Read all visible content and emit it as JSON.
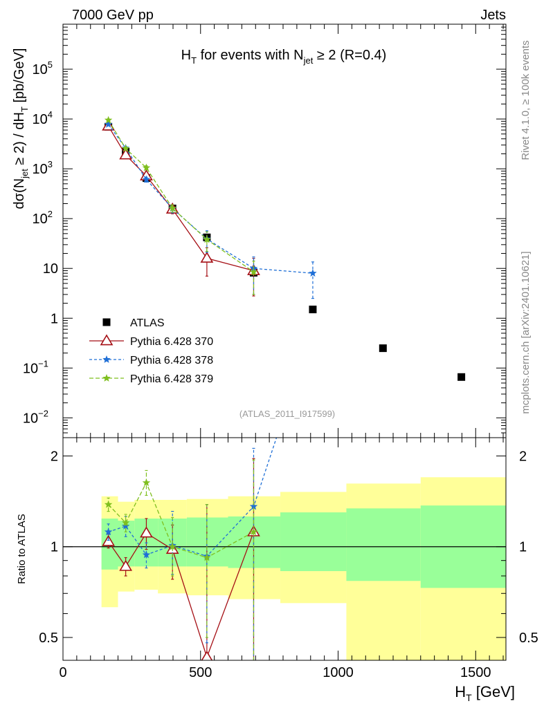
{
  "header": {
    "left": "7000 GeV pp",
    "right": "Jets",
    "side_top": "Rivet 4.1.0, ≥ 100k events",
    "side_bottom": "mcplots.cern.ch [arXiv:2401.10621]",
    "analysis_id": "(ATLAS_2011_I917599)"
  },
  "chart_data": [
    {
      "type": "line",
      "panel": "main",
      "title": "H_T for events with N_jet ≥ 2 (R=0.4)",
      "title_parts": {
        "h": "H",
        "h_sub": "T",
        "mid": " for events with N",
        "n_sub": "jet",
        "tail": " ≥ 2 (R=0.4)"
      },
      "xlabel": "H_T [GeV]",
      "ylabel": "dσ(N_jet ≥ 2) / dH_T [pb/GeV]",
      "ylabel_parts": {
        "a": "dσ(N",
        "a_sub": "jet",
        "b": " ≥ 2) / dH",
        "b_sub": "T",
        "c": " [pb/GeV]"
      },
      "xlim": [
        0,
        1610
      ],
      "ylim": [
        0.004,
        800000
      ],
      "yscale": "log",
      "xticks": [
        0,
        500,
        1000,
        1500
      ],
      "xtick_labels": [
        "0",
        "500",
        "1000",
        "1500"
      ],
      "yticks": [
        0.01,
        0.1,
        1,
        10,
        100,
        1000,
        10000,
        100000
      ],
      "ytick_labels": [
        {
          "base": "10",
          "exp": "−2"
        },
        {
          "base": "10",
          "exp": "−1"
        },
        {
          "base": "1",
          "exp": ""
        },
        {
          "base": "10",
          "exp": ""
        },
        {
          "base": "10",
          "exp": "2"
        },
        {
          "base": "10",
          "exp": "3"
        },
        {
          "base": "10",
          "exp": "4"
        },
        {
          "base": "10",
          "exp": "5"
        }
      ],
      "series": [
        {
          "name": "ATLAS",
          "color": "#000000",
          "marker": "square",
          "points": [
            {
              "x": 165,
              "y": 7000
            },
            {
              "x": 228,
              "y": 2200
            },
            {
              "x": 303,
              "y": 650
            },
            {
              "x": 398,
              "y": 160
            },
            {
              "x": 523,
              "y": 42
            },
            {
              "x": 693,
              "y": 8.2
            },
            {
              "x": 908,
              "y": 1.5
            },
            {
              "x": 1163,
              "y": 0.25
            },
            {
              "x": 1448,
              "y": 0.066
            }
          ]
        },
        {
          "name": "Pythia 6.428 370",
          "color": "#a50f15",
          "marker": "triangle-open",
          "dash": "",
          "points": [
            {
              "x": 165,
              "y": 7200,
              "lo": 6800,
              "hi": 7600
            },
            {
              "x": 228,
              "y": 1900,
              "lo": 1780,
              "hi": 2020
            },
            {
              "x": 303,
              "y": 720,
              "lo": 640,
              "hi": 800
            },
            {
              "x": 398,
              "y": 155,
              "lo": 125,
              "hi": 185
            },
            {
              "x": 523,
              "y": 16,
              "lo": 7,
              "hi": 26
            },
            {
              "x": 693,
              "y": 9,
              "lo": 2.8,
              "hi": 16
            }
          ]
        },
        {
          "name": "Pythia 6.428 378",
          "color": "#1f6fd6",
          "marker": "star",
          "dash": "4,3",
          "points": [
            {
              "x": 165,
              "y": 7800,
              "lo": 7300,
              "hi": 8300
            },
            {
              "x": 228,
              "y": 2600,
              "lo": 2400,
              "hi": 2800
            },
            {
              "x": 303,
              "y": 610,
              "lo": 540,
              "hi": 680
            },
            {
              "x": 398,
              "y": 160,
              "lo": 130,
              "hi": 190
            },
            {
              "x": 523,
              "y": 39,
              "lo": 21,
              "hi": 57
            },
            {
              "x": 693,
              "y": 10,
              "lo": 3,
              "hi": 17
            },
            {
              "x": 908,
              "y": 8,
              "lo": 2.5,
              "hi": 13.5
            }
          ]
        },
        {
          "name": "Pythia 6.428 379",
          "color": "#7fbf1f",
          "marker": "star",
          "dash": "6,3",
          "points": [
            {
              "x": 165,
              "y": 9500,
              "lo": 9000,
              "hi": 10000
            },
            {
              "x": 228,
              "y": 2550,
              "lo": 2400,
              "hi": 2700
            },
            {
              "x": 303,
              "y": 1050,
              "lo": 950,
              "hi": 1150
            },
            {
              "x": 398,
              "y": 162,
              "lo": 135,
              "hi": 190
            },
            {
              "x": 523,
              "y": 38,
              "lo": 22,
              "hi": 54
            },
            {
              "x": 693,
              "y": 8.5,
              "lo": 3,
              "hi": 14
            }
          ]
        }
      ],
      "legend": {
        "position": "left-middle"
      }
    },
    {
      "type": "line",
      "panel": "ratio",
      "ylabel": "Ratio to ATLAS",
      "xlim": [
        0,
        1610
      ],
      "ylim": [
        0.42,
        2.3
      ],
      "yscale": "log",
      "yticks": [
        0.5,
        1,
        2
      ],
      "ytick_labels": [
        "0.5",
        "1",
        "2"
      ],
      "reference_line": 1,
      "bands": [
        {
          "x0": 140,
          "x1": 200,
          "green": [
            0.84,
            1.24
          ],
          "yellow": [
            0.63,
            1.47
          ]
        },
        {
          "x0": 200,
          "x1": 260,
          "green": [
            0.86,
            1.22
          ],
          "yellow": [
            0.71,
            1.41
          ]
        },
        {
          "x0": 260,
          "x1": 345,
          "green": [
            0.86,
            1.24
          ],
          "yellow": [
            0.72,
            1.43
          ]
        },
        {
          "x0": 345,
          "x1": 450,
          "green": [
            0.86,
            1.24
          ],
          "yellow": [
            0.7,
            1.43
          ]
        },
        {
          "x0": 450,
          "x1": 600,
          "green": [
            0.86,
            1.25
          ],
          "yellow": [
            0.69,
            1.44
          ]
        },
        {
          "x0": 600,
          "x1": 790,
          "green": [
            0.85,
            1.26
          ],
          "yellow": [
            0.67,
            1.47
          ]
        },
        {
          "x0": 790,
          "x1": 1030,
          "green": [
            0.83,
            1.3
          ],
          "yellow": [
            0.65,
            1.52
          ]
        },
        {
          "x0": 1030,
          "x1": 1300,
          "green": [
            0.77,
            1.34
          ],
          "yellow": [
            0.38,
            1.62
          ]
        },
        {
          "x0": 1300,
          "x1": 1610,
          "green": [
            0.73,
            1.37
          ],
          "yellow": [
            0.3,
            1.7
          ]
        }
      ],
      "series": [
        {
          "name": "Pythia 6.428 370",
          "color": "#a50f15",
          "marker": "triangle-open",
          "dash": "",
          "points": [
            {
              "x": 165,
              "y": 1.04,
              "lo": 0.99,
              "hi": 1.1
            },
            {
              "x": 228,
              "y": 0.86,
              "lo": 0.8,
              "hi": 0.92
            },
            {
              "x": 303,
              "y": 1.11,
              "lo": 0.98,
              "hi": 1.24
            },
            {
              "x": 398,
              "y": 0.98,
              "lo": 0.78,
              "hi": 1.18
            },
            {
              "x": 523,
              "y": 0.43,
              "lo": 0.3,
              "hi": 1.38
            },
            {
              "x": 693,
              "y": 1.12,
              "lo": 0.3,
              "hi": 1.96
            }
          ]
        },
        {
          "name": "Pythia 6.428 378",
          "color": "#1f6fd6",
          "marker": "star",
          "dash": "4,3",
          "points": [
            {
              "x": 165,
              "y": 1.12,
              "lo": 1.05,
              "hi": 1.19
            },
            {
              "x": 228,
              "y": 1.17,
              "lo": 1.08,
              "hi": 1.26
            },
            {
              "x": 303,
              "y": 0.94,
              "lo": 0.85,
              "hi": 1.03
            },
            {
              "x": 398,
              "y": 1.01,
              "lo": 0.81,
              "hi": 1.31
            },
            {
              "x": 523,
              "y": 0.93,
              "lo": 0.48,
              "hi": 1.38
            },
            {
              "x": 693,
              "y": 1.36,
              "lo": 0.3,
              "hi": 2.12
            },
            {
              "x": 908,
              "y": 5.3
            }
          ]
        },
        {
          "name": "Pythia 6.428 379",
          "color": "#7fbf1f",
          "marker": "star",
          "dash": "6,3",
          "points": [
            {
              "x": 165,
              "y": 1.38,
              "lo": 1.31,
              "hi": 1.45
            },
            {
              "x": 228,
              "y": 1.2,
              "lo": 1.12,
              "hi": 1.28
            },
            {
              "x": 303,
              "y": 1.63,
              "lo": 1.48,
              "hi": 1.79
            },
            {
              "x": 398,
              "y": 1.0,
              "lo": 0.8,
              "hi": 1.25
            },
            {
              "x": 523,
              "y": 0.92,
              "lo": 0.5,
              "hi": 1.38
            },
            {
              "x": 693,
              "y": 1.12,
              "lo": 0.3,
              "hi": 1.94
            }
          ]
        }
      ]
    }
  ]
}
